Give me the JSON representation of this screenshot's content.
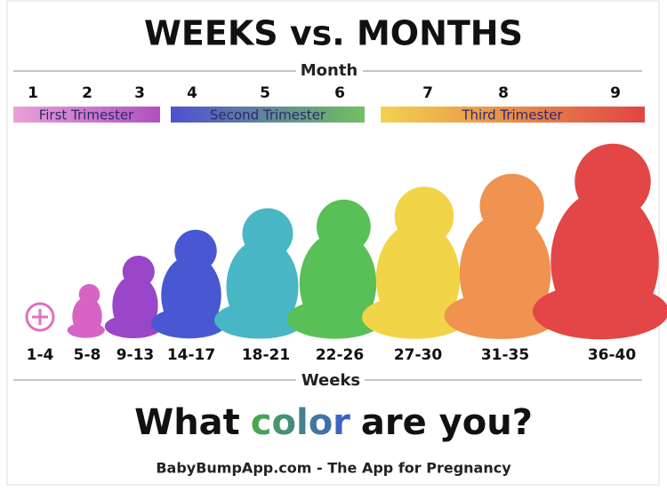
{
  "header": {
    "title": "WEEKS vs. MONTHS",
    "month_label": "Month"
  },
  "months": [
    "1",
    "2",
    "3",
    "4",
    "5",
    "6",
    "7",
    "8",
    "9"
  ],
  "trimesters": [
    "First Trimester",
    "Second Trimester",
    "Third Trimester"
  ],
  "weeks": [
    "1-4",
    "5-8",
    "9-13",
    "14-17",
    "18-21",
    "22-26",
    "27-30",
    "31-35",
    "36-40"
  ],
  "weeks_label": "Weeks",
  "question": {
    "before": "What",
    "highlight": "color",
    "after": "are you?"
  },
  "footer": "BabyBumpApp.com - The App for Pregnancy"
}
